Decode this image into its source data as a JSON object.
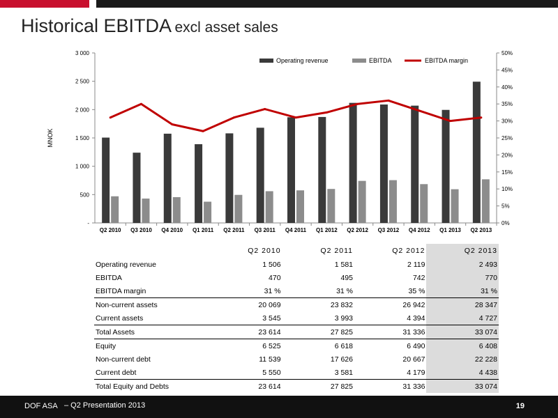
{
  "page": {
    "title_main": "Historical EBITDA",
    "title_sub": "excl asset sales",
    "company": "DOF ASA",
    "presentation": "– Q2 Presentation 2013",
    "page_number": "19"
  },
  "colors": {
    "revenue": "#3a3a3a",
    "ebitda": "#8c8c8c",
    "margin": "#c00000",
    "brand_red": "#c8102e"
  },
  "chart_data": {
    "type": "bar",
    "categories": [
      "Q2 2010",
      "Q3 2010",
      "Q4 2010",
      "Q1 2011",
      "Q2 2011",
      "Q3 2011",
      "Q4 2011",
      "Q1 2012",
      "Q2 2012",
      "Q3 2012",
      "Q4 2012",
      "Q1 2013",
      "Q2 2013"
    ],
    "series": [
      {
        "name": "Operating revenue",
        "kind": "bar",
        "axis": "left",
        "values": [
          1506,
          1240,
          1575,
          1390,
          1581,
          1680,
          1865,
          1870,
          2119,
          2090,
          2070,
          1995,
          2493
        ]
      },
      {
        "name": "EBITDA",
        "kind": "bar",
        "axis": "left",
        "values": [
          470,
          430,
          455,
          375,
          495,
          560,
          575,
          600,
          742,
          755,
          685,
          595,
          770
        ]
      },
      {
        "name": "EBITDA margin",
        "kind": "line",
        "axis": "right",
        "values": [
          31,
          35,
          29,
          27,
          31,
          33.5,
          31,
          32.5,
          35,
          36,
          33,
          30,
          31
        ]
      }
    ],
    "ylabel": "MNOK",
    "ylim": [
      0,
      3000
    ],
    "y_ticks": [
      "-",
      "500",
      "1 000",
      "1 500",
      "2 000",
      "2 500",
      "3 000"
    ],
    "y2lim": [
      0,
      50
    ],
    "y2_ticks": [
      "0%",
      "5%",
      "10%",
      "15%",
      "20%",
      "25%",
      "30%",
      "35%",
      "40%",
      "45%",
      "50%"
    ],
    "legend_position": "top-right"
  },
  "table": {
    "headers": [
      "Q2 2010",
      "Q2 2011",
      "Q2 2012",
      "Q2 2013"
    ],
    "rows": [
      {
        "label": "Operating revenue",
        "values": [
          "1 506",
          "1 581",
          "2 119",
          "2 493"
        ]
      },
      {
        "label": "EBITDA",
        "values": [
          "470",
          "495",
          "742",
          "770"
        ]
      },
      {
        "label": "EBITDA margin",
        "values": [
          "31 %",
          "31 %",
          "35 %",
          "31 %"
        ]
      },
      {
        "label": "Non-current assets",
        "values": [
          "20 069",
          "23 832",
          "26 942",
          "28 347"
        ]
      },
      {
        "label": "Current assets",
        "values": [
          "3 545",
          "3 993",
          "4 394",
          "4 727"
        ]
      },
      {
        "label": "Total Assets",
        "values": [
          "23 614",
          "27 825",
          "31 336",
          "33 074"
        ]
      },
      {
        "label": "Equity",
        "values": [
          "6 525",
          "6 618",
          "6 490",
          "6 408"
        ]
      },
      {
        "label": "Non-current debt",
        "values": [
          "11 539",
          "17 626",
          "20 667",
          "22 228"
        ]
      },
      {
        "label": "Current debt",
        "values": [
          "5 550",
          "3 581",
          "4 179",
          "4 438"
        ]
      },
      {
        "label": "Total Equity and Debts",
        "values": [
          "23 614",
          "27 825",
          "31 336",
          "33 074"
        ]
      }
    ]
  }
}
